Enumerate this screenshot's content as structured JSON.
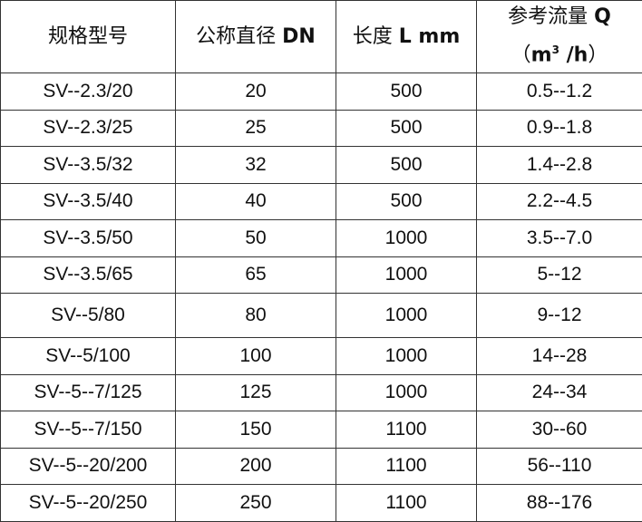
{
  "headers": [
    {
      "cn": "规格型号",
      "en": ""
    },
    {
      "cn": "公称直径",
      "en": "DN"
    },
    {
      "cn": "长度",
      "en": "L mm"
    },
    {
      "cn": "参考流量",
      "en": "Q",
      "unit_open": "（",
      "unit_m": "m",
      "unit_sup": "3",
      "unit_rest": " /h",
      "unit_close": "）"
    }
  ],
  "rows": [
    [
      "SV--2.3/20",
      "20",
      "500",
      "0.5--1.2"
    ],
    [
      "SV--2.3/25",
      "25",
      "500",
      "0.9--1.8"
    ],
    [
      "SV--3.5/32",
      "32",
      "500",
      "1.4--2.8"
    ],
    [
      "SV--3.5/40",
      "40",
      "500",
      "2.2--4.5"
    ],
    [
      "SV--3.5/50",
      "50",
      "1000",
      "3.5--7.0"
    ],
    [
      "SV--3.5/65",
      "65",
      "1000",
      "5--12"
    ],
    [
      "SV--5/80",
      "80",
      "1000",
      "9--12"
    ],
    [
      "SV--5/100",
      "100",
      "1000",
      "14--28"
    ],
    [
      "SV--5--7/125",
      "125",
      "1000",
      "24--34"
    ],
    [
      "SV--5--7/150",
      "150",
      "1100",
      "30--60"
    ],
    [
      "SV--5--20/200",
      "200",
      "1100",
      "56--110"
    ],
    [
      "SV--5--20/250",
      "250",
      "1100",
      "88--176"
    ]
  ]
}
